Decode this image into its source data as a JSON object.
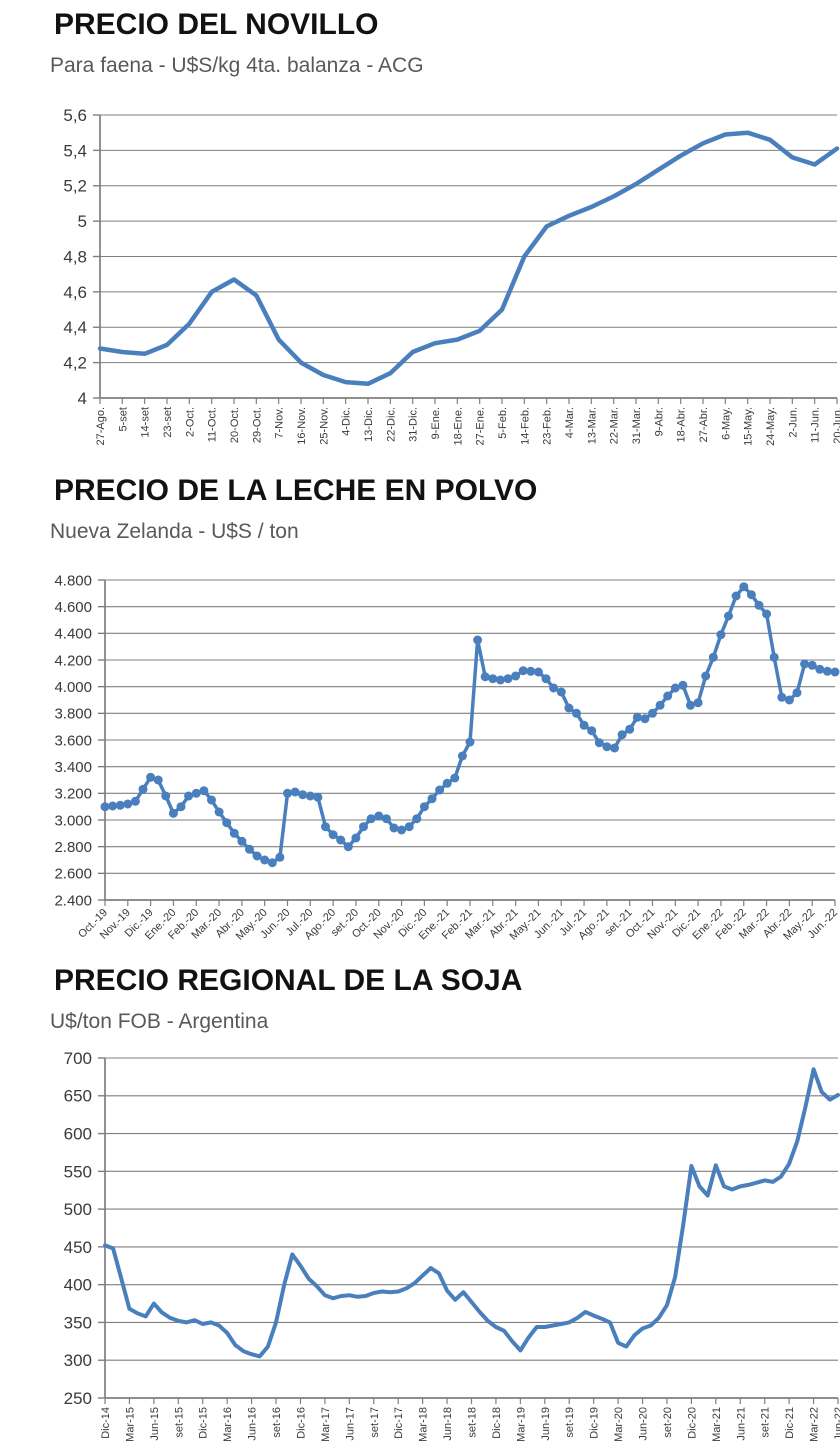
{
  "colors": {
    "line": "#4a7fbe",
    "grid": "#7f7f7f",
    "tick_text": "#3a3a3a",
    "title_text": "#121212",
    "subtitle_text": "#595959",
    "background": "#ffffff"
  },
  "chart_data": [
    {
      "type": "line",
      "title": "PRECIO DEL NOVILLO",
      "subtitle": "Para faena - U$S/kg 4ta. balanza - ACG",
      "xlabel": "",
      "ylabel": "",
      "ylim": [
        4.0,
        5.6
      ],
      "grid": true,
      "legend": "none",
      "marker": false,
      "points_per_label": 1,
      "y_ticks": {
        "values": [
          5.6,
          5.4,
          5.2,
          5.0,
          4.8,
          4.6,
          4.4,
          4.2,
          4.0
        ],
        "labels": [
          "5,6",
          "5,4",
          "5,2",
          "5",
          "4,8",
          "4,6",
          "4,4",
          "4,2",
          "4"
        ]
      },
      "x_labels": [
        "27-Ago.",
        "5-set",
        "14-set",
        "23-set",
        "2-Oct.",
        "11-Oct.",
        "20-Oct.",
        "29-Oct.",
        "7-Nov.",
        "16-Nov.",
        "25-Nov.",
        "4-Dic.",
        "13-Dic.",
        "22-Dic.",
        "31-Dic.",
        "9-Ene.",
        "18-Ene.",
        "27-Ene.",
        "5-Feb.",
        "14-Feb.",
        "23-Feb.",
        "4-Mar.",
        "13-Mar.",
        "22-Mar.",
        "31-Mar.",
        "9-Abr.",
        "18-Abr.",
        "27-Abr.",
        "6-May.",
        "15-May.",
        "24-May.",
        "2-Jun.",
        "11-Jun.",
        "20-Jun."
      ],
      "values": [
        4.28,
        4.26,
        4.25,
        4.3,
        4.42,
        4.6,
        4.67,
        4.58,
        4.33,
        4.2,
        4.13,
        4.09,
        4.08,
        4.14,
        4.26,
        4.31,
        4.33,
        4.38,
        4.5,
        4.8,
        4.97,
        5.03,
        5.08,
        5.14,
        5.21,
        5.29,
        5.37,
        5.44,
        5.49,
        5.5,
        5.46,
        5.36,
        5.32,
        5.41
      ]
    },
    {
      "type": "line",
      "title": "PRECIO DE LA LECHE EN POLVO",
      "subtitle": "Nueva Zelanda - U$S / ton",
      "xlabel": "",
      "ylabel": "",
      "ylim": [
        2400,
        4800
      ],
      "grid": true,
      "legend": "none",
      "marker": true,
      "points_per_label": 3,
      "y_ticks": {
        "values": [
          4800,
          4600,
          4400,
          4200,
          4000,
          3800,
          3600,
          3400,
          3200,
          3000,
          2800,
          2600,
          2400
        ],
        "labels": [
          "4.800",
          "4.600",
          "4.400",
          "4.200",
          "4.000",
          "3.800",
          "3.600",
          "3.400",
          "3.200",
          "3.000",
          "2.800",
          "2.600",
          "2.400"
        ]
      },
      "x_labels": [
        "Oct.-19",
        "Nov.-19",
        "Dic.-19",
        "Ene.-20",
        "Feb.-20",
        "Mar.-20",
        "Abr.-20",
        "May.-20",
        "Jun.-20",
        "Jul.-20",
        "Ago.-20",
        "set.-20",
        "Oct.-20",
        "Nov.-20",
        "Dic.-20",
        "Ene.-21",
        "Feb.-21",
        "Mar.-21",
        "Abr.-21",
        "May.-21",
        "Jun.-21",
        "Jul.-21",
        "Ago.-21",
        "set.-21",
        "Oct.-21",
        "Nov.-21",
        "Dic.-21",
        "Ene.-22",
        "Feb.-22",
        "Mar.-22",
        "Abr.-22",
        "May.-22",
        "Jun.-22"
      ],
      "values": [
        3100,
        3105,
        3110,
        3120,
        3140,
        3230,
        3320,
        3300,
        3180,
        3050,
        3100,
        3180,
        3200,
        3220,
        3150,
        3060,
        2980,
        2900,
        2840,
        2780,
        2730,
        2700,
        2680,
        2720,
        3200,
        3210,
        3190,
        3180,
        3170,
        2950,
        2890,
        2850,
        2800,
        2865,
        2950,
        3010,
        3030,
        3010,
        2940,
        2925,
        2950,
        3010,
        3100,
        3160,
        3225,
        3275,
        3315,
        3480,
        3585,
        4350,
        4075,
        4060,
        4050,
        4060,
        4080,
        4120,
        4115,
        4110,
        4060,
        3990,
        3960,
        3840,
        3800,
        3710,
        3670,
        3580,
        3550,
        3540,
        3640,
        3680,
        3770,
        3760,
        3800,
        3860,
        3930,
        3990,
        4010,
        3860,
        3880,
        4080,
        4220,
        4390,
        4530,
        4680,
        4750,
        4690,
        4610,
        4545,
        4220,
        3920,
        3900,
        3955,
        4170,
        4160,
        4130,
        4115,
        4110
      ]
    },
    {
      "type": "line",
      "title": "PRECIO REGIONAL DE LA SOJA",
      "subtitle": "U$/ton FOB - Argentina",
      "xlabel": "",
      "ylabel": "",
      "ylim": [
        250,
        700
      ],
      "grid": true,
      "legend": "none",
      "marker": false,
      "points_per_label": 3,
      "y_ticks": {
        "values": [
          700,
          650,
          600,
          550,
          500,
          450,
          400,
          350,
          300,
          250
        ],
        "labels": [
          "700",
          "650",
          "600",
          "550",
          "500",
          "450",
          "400",
          "350",
          "300",
          "250"
        ]
      },
      "x_labels": [
        "Dic-14",
        "Mar-15",
        "Jun-15",
        "set-15",
        "Dic-15",
        "Mar-16",
        "Jun-16",
        "set-16",
        "Dic-16",
        "Mar-17",
        "Jun-17",
        "set-17",
        "Dic-17",
        "Mar-18",
        "Jun-18",
        "set-18",
        "Dic-18",
        "Mar-19",
        "Jun-19",
        "set-19",
        "Dic-19",
        "Mar-20",
        "Jun-20",
        "set-20",
        "Dic-20",
        "Mar-21",
        "Jun-21",
        "set-21",
        "Dic-21",
        "Mar-22",
        "Jun-22"
      ],
      "values": [
        452,
        448,
        408,
        368,
        362,
        358,
        375,
        363,
        356,
        352,
        350,
        353,
        348,
        350,
        346,
        336,
        320,
        312,
        308,
        305,
        318,
        350,
        400,
        440,
        425,
        408,
        398,
        386,
        382,
        385,
        386,
        384,
        385,
        389,
        391,
        390,
        391,
        395,
        402,
        412,
        422,
        415,
        392,
        380,
        390,
        377,
        364,
        352,
        344,
        339,
        325,
        313,
        330,
        344,
        344,
        346,
        348,
        350,
        356,
        364,
        359,
        355,
        350,
        323,
        318,
        333,
        342,
        346,
        356,
        373,
        410,
        480,
        557,
        530,
        518,
        558,
        530,
        526,
        530,
        532,
        535,
        538,
        536,
        543,
        560,
        590,
        635,
        685,
        655,
        645,
        651
      ]
    }
  ]
}
